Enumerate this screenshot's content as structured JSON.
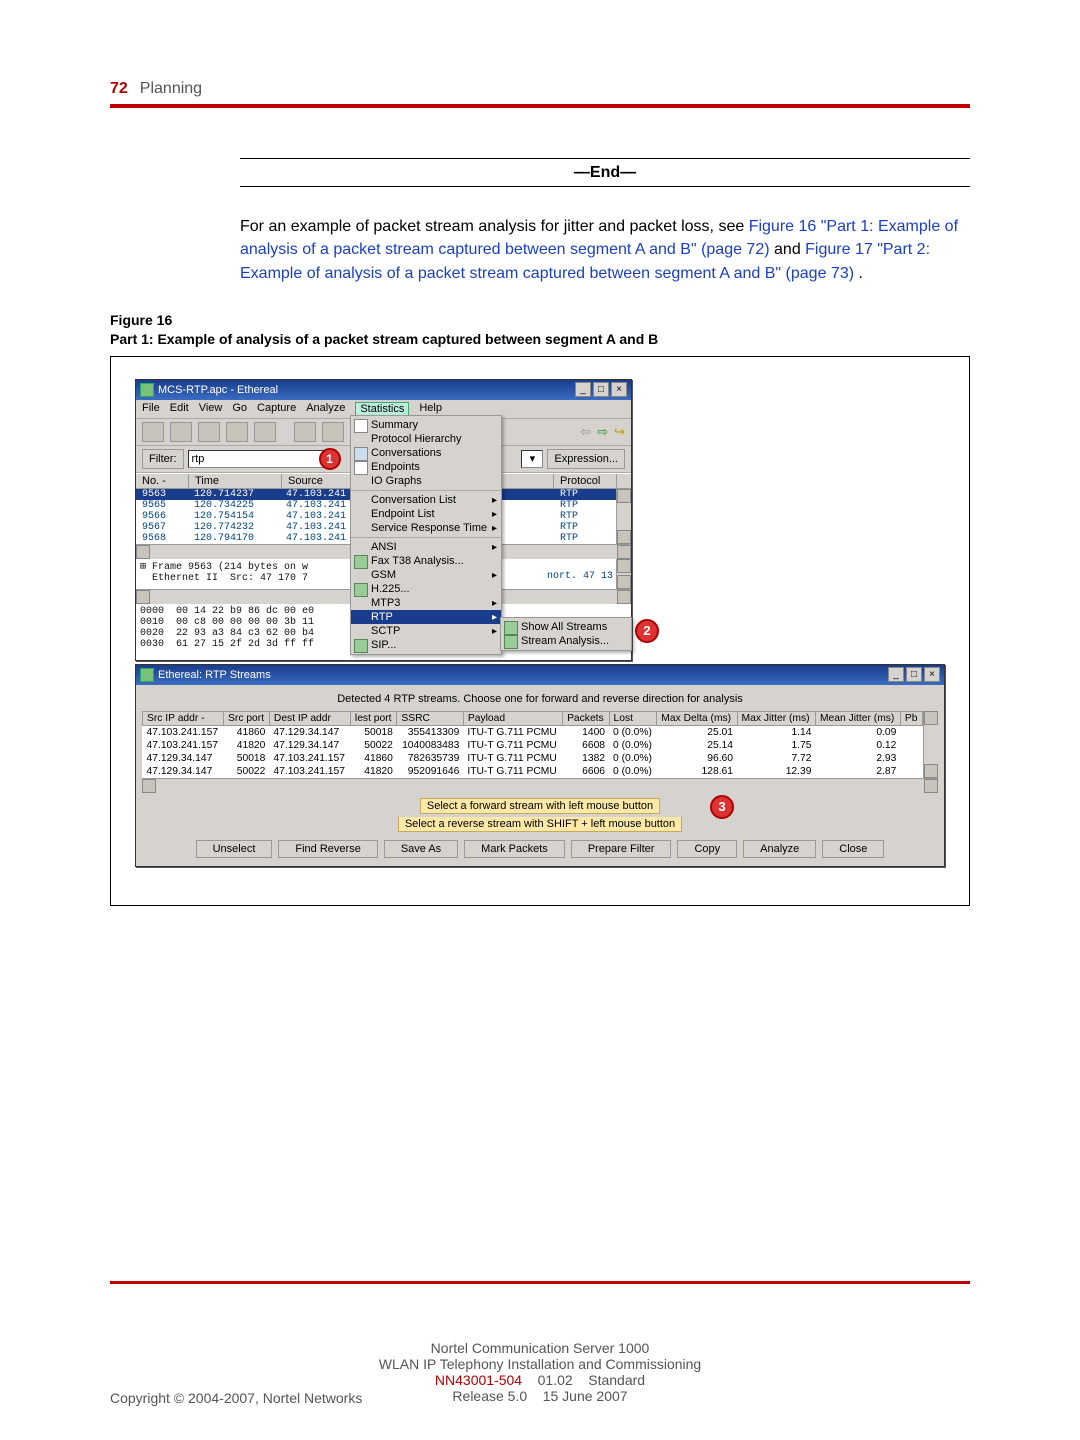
{
  "header": {
    "page_num": "72",
    "section": "Planning"
  },
  "end_label": "—End—",
  "body": {
    "para1": "For an example of packet stream analysis for jitter and packet loss, see ",
    "link1": "Figure 16 \"Part 1: Example of analysis of a packet stream captured between segment A and B\" (page 72)",
    "mid": " and ",
    "link2": "Figure 17 \"Part 2: Example of analysis of a packet stream captured between segment A and B\" (page 73)",
    "tail": "."
  },
  "figcap": {
    "l1": "Figure 16",
    "l2": "Part 1: Example of analysis of a packet stream captured between segment A and B"
  },
  "win1": {
    "title": "MCS-RTP.apc - Ethereal",
    "menu": [
      "File",
      "Edit",
      "View",
      "Go",
      "Capture",
      "Analyze",
      "Statistics",
      "Help"
    ],
    "stats_menu": [
      "Summary",
      "Protocol Hierarchy",
      "Conversations",
      "Endpoints",
      "IO Graphs",
      "Conversation List",
      "Endpoint List",
      "Service Response Time",
      "ANSI",
      "Fax T38 Analysis...",
      "GSM",
      "H.225...",
      "MTP3",
      "RTP",
      "SCTP",
      "SIP..."
    ],
    "rtp_submenu": [
      "Show All Streams",
      "Stream Analysis..."
    ],
    "filter_label": "Filter:",
    "filter_value": "rtp",
    "expr_btn": "Expression...",
    "cols": [
      "No. -",
      "Time",
      "Source",
      "Protocol"
    ],
    "rows": [
      {
        "no": "9563",
        "time": "120.714237",
        "src": "47.103.241",
        "proto": "RTP",
        "sel": true
      },
      {
        "no": "9565",
        "time": "120.734225",
        "src": "47.103.241",
        "proto": "RTP"
      },
      {
        "no": "9566",
        "time": "120.754154",
        "src": "47.103.241",
        "proto": "RTP"
      },
      {
        "no": "9567",
        "time": "120.774232",
        "src": "47.103.241",
        "proto": "RTP"
      },
      {
        "no": "9568",
        "time": "120.794170",
        "src": "47.103.241",
        "proto": "RTP"
      }
    ],
    "mid_pane": "⊞ Frame 9563 (214 bytes on w\n  Ethernet II  Src: 47 170 7",
    "hex_pane": "0000  00 14 22 b9 86 dc 00 e0\n0010  00 c8 00 00 00 00 3b 11\n0020  22 93 a3 84 c3 62 00 b4\n0030  61 27 15 2f 2d 3d ff ff",
    "port_frag": "nort. 47 13"
  },
  "win2": {
    "title": "Ethereal: RTP Streams",
    "detected": "Detected 4 RTP streams. Choose one for forward and reverse direction for analysis",
    "headers": [
      "Src IP addr -",
      "Src port",
      "Dest IP addr",
      "lest port",
      "SSRC",
      "Payload",
      "Packets",
      "Lost",
      "Max Delta (ms)",
      "Max Jitter (ms)",
      "Mean Jitter (ms)",
      "Pb"
    ],
    "rows": [
      [
        "47.103.241.157",
        "41860",
        "47.129.34.147",
        "50018",
        "355413309",
        "ITU-T G.711 PCMU",
        "1400",
        "0 (0.0%)",
        "25.01",
        "1.14",
        "0.09",
        ""
      ],
      [
        "47.103.241.157",
        "41820",
        "47.129.34.147",
        "50022",
        "1040083483",
        "ITU-T G.711 PCMU",
        "6608",
        "0 (0.0%)",
        "25.14",
        "1.75",
        "0.12",
        ""
      ],
      [
        "47.129.34.147",
        "50018",
        "47.103.241.157",
        "41860",
        "782635739",
        "ITU-T G.711 PCMU",
        "1382",
        "0 (0.0%)",
        "96.60",
        "7.72",
        "2.93",
        ""
      ],
      [
        "47.129.34.147",
        "50022",
        "47.103.241.157",
        "41820",
        "952091646",
        "ITU-T G.711 PCMU",
        "6606",
        "0 (0.0%)",
        "128.61",
        "12.39",
        "2.87",
        ""
      ]
    ],
    "hint1": "Select a forward stream with left mouse button",
    "hint2": "Select a reverse stream with SHIFT + left mouse button",
    "buttons": [
      "Unselect",
      "Find Reverse",
      "Save As",
      "Mark Packets",
      "Prepare Filter",
      "Copy",
      "Analyze",
      "Close"
    ]
  },
  "footer": {
    "l1": "Nortel Communication Server 1000",
    "l2": "WLAN IP Telephony Installation and Commissioning",
    "l3a": "NN43001-504",
    "l3b": "01.02",
    "l3c": "Standard",
    "l4a": "Release 5.0",
    "l4b": "15 June 2007",
    "copyright": "Copyright © 2004-2007, Nortel Networks"
  },
  "colors": {
    "accent": "#c00000",
    "link": "#1a3fc4",
    "win_chrome": "#d6d3ce",
    "titlebar_a": "#1a3c8c",
    "titlebar_b": "#3a6cc0",
    "hint_bg": "#ffe9a8"
  }
}
